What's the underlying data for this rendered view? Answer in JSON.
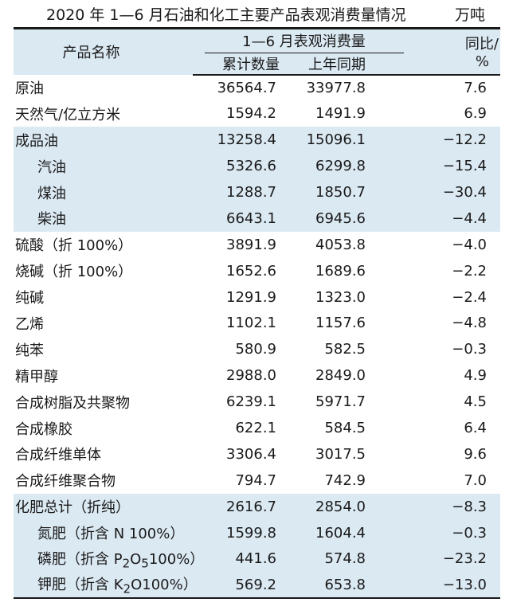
{
  "title": {
    "text": "2020 年 1—6 月石油和化工主要产品表观消费量情况",
    "unit": "万吨"
  },
  "table": {
    "header": {
      "product": "产品名称",
      "group": "1—6 月表观消费量",
      "cumulative": "累计数量",
      "last_year": "上年同期",
      "yoy_line1": "同比/",
      "yoy_line2": "%"
    },
    "rows": [
      {
        "name": "原油",
        "cumulative": "36564.7",
        "last_year": "33977.8",
        "yoy": "7.6"
      },
      {
        "name": "天然气/亿立方米",
        "cumulative": "1594.2",
        "last_year": "1491.9",
        "yoy": "6.9"
      },
      {
        "name": "成品油",
        "cumulative": "13258.4",
        "last_year": "15096.1",
        "yoy": "−12.2"
      },
      {
        "name": "汽油",
        "cumulative": "5326.6",
        "last_year": "6299.8",
        "yoy": "−15.4"
      },
      {
        "name": "煤油",
        "cumulative": "1288.7",
        "last_year": "1850.7",
        "yoy": "−30.4"
      },
      {
        "name": "柴油",
        "cumulative": "6643.1",
        "last_year": "6945.6",
        "yoy": "−4.4"
      },
      {
        "name": "硫酸（折 100%）",
        "cumulative": "3891.9",
        "last_year": "4053.8",
        "yoy": "−4.0"
      },
      {
        "name": "烧碱（折 100%）",
        "cumulative": "1652.6",
        "last_year": "1689.6",
        "yoy": "−2.2"
      },
      {
        "name": "纯碱",
        "cumulative": "1291.9",
        "last_year": "1323.0",
        "yoy": "−2.4"
      },
      {
        "name": "乙烯",
        "cumulative": "1102.1",
        "last_year": "1157.6",
        "yoy": "−4.8"
      },
      {
        "name": "纯苯",
        "cumulative": "580.9",
        "last_year": "582.5",
        "yoy": "−0.3"
      },
      {
        "name": "精甲醇",
        "cumulative": "2988.0",
        "last_year": "2849.0",
        "yoy": "4.9"
      },
      {
        "name": "合成树脂及共聚物",
        "cumulative": "6239.1",
        "last_year": "5971.7",
        "yoy": "4.5"
      },
      {
        "name": "合成橡胶",
        "cumulative": "622.1",
        "last_year": "584.5",
        "yoy": "6.4"
      },
      {
        "name": "合成纤维单体",
        "cumulative": "3306.4",
        "last_year": "3017.5",
        "yoy": "9.6"
      },
      {
        "name": "合成纤维聚合物",
        "cumulative": "794.7",
        "last_year": "742.9",
        "yoy": "7.0"
      },
      {
        "name": "化肥总计（折纯）",
        "cumulative": "2616.7",
        "last_year": "2854.0",
        "yoy": "−8.3"
      },
      {
        "name": "氮肥（折含 N 100%）",
        "cumulative": "1599.8",
        "last_year": "1604.4",
        "yoy": "−0.3"
      },
      {
        "name_pre": "磷肥（折含 P",
        "name_sub1": "2",
        "name_mid": "O",
        "name_sub2": "5",
        "name_post": "100%）",
        "cumulative": "441.6",
        "last_year": "574.8",
        "yoy": "−23.2"
      },
      {
        "name_pre": "钾肥（折含 K",
        "name_sub1": "2",
        "name_post": "O100%）",
        "cumulative": "569.2",
        "last_year": "653.8",
        "yoy": "−13.0"
      }
    ]
  }
}
